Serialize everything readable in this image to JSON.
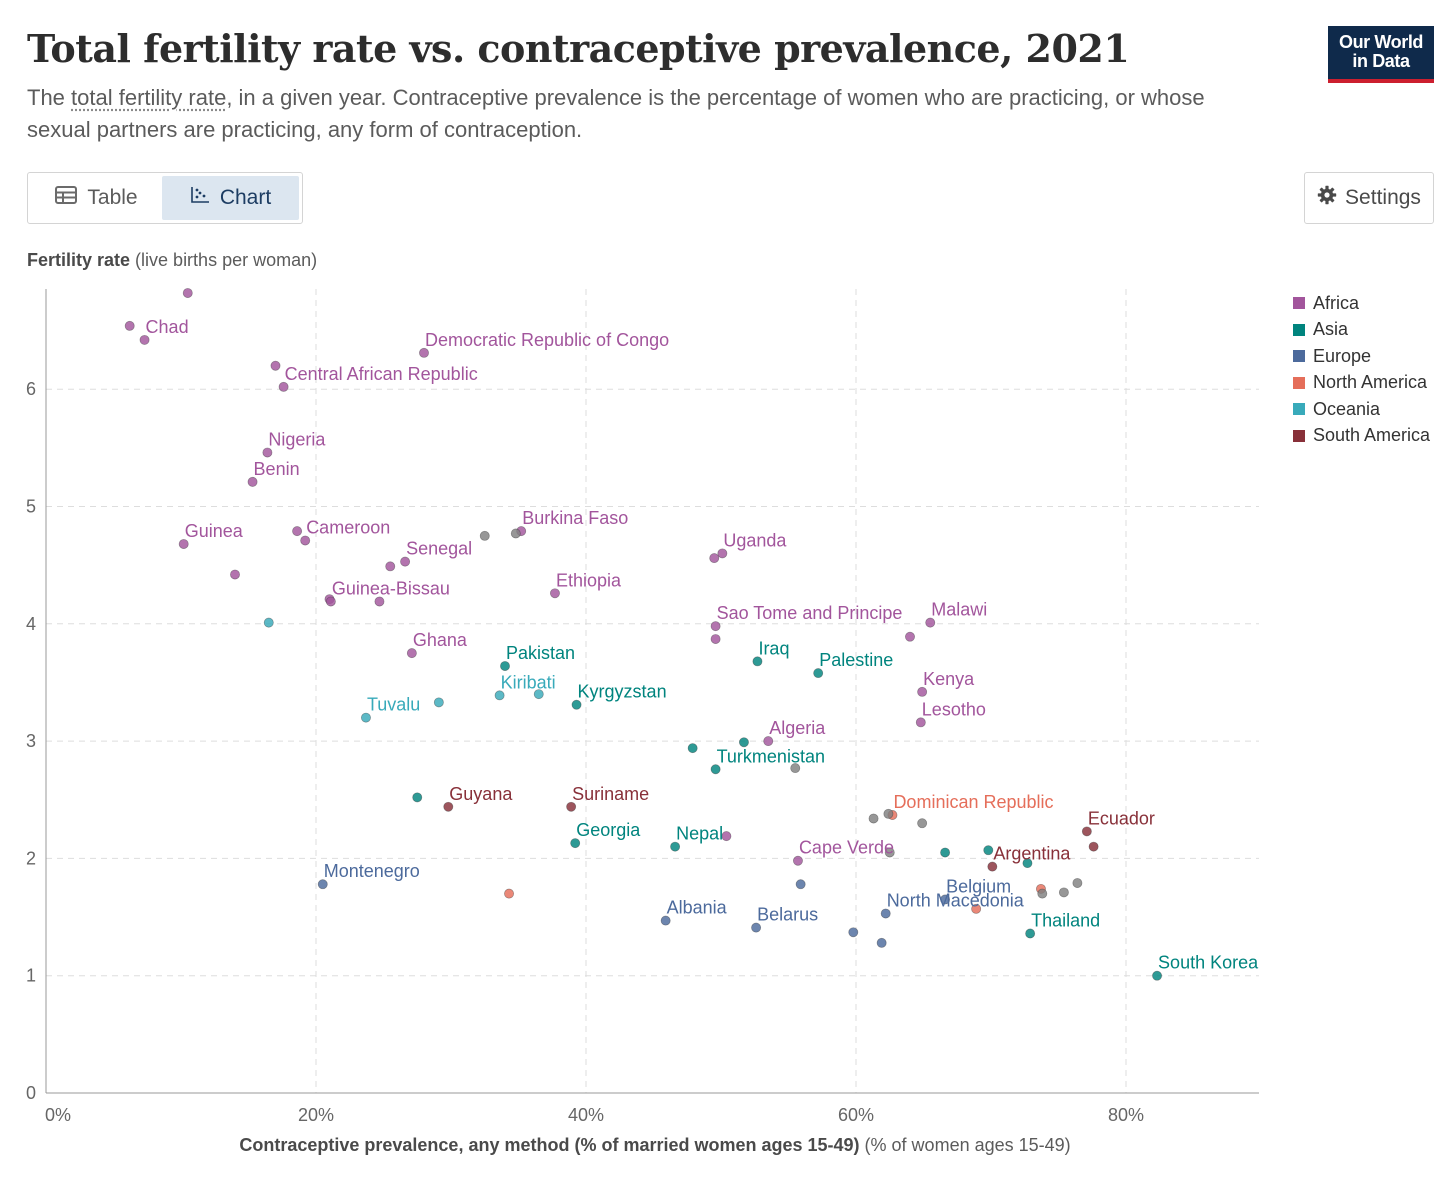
{
  "header": {
    "title": "Total fertility rate vs. contraceptive prevalence, 2021",
    "subtitle_pre": "The ",
    "subtitle_link": "total fertility rate",
    "subtitle_post": ", in a given year. Contraceptive prevalence is the percentage of women who are practicing, or whose sexual partners are practicing, any form of contraception.",
    "logo_line1": "Our World",
    "logo_line2": "in Data"
  },
  "controls": {
    "table_label": "Table",
    "chart_label": "Chart",
    "settings_label": "Settings",
    "active_tab": "Chart"
  },
  "axes": {
    "y_label_bold": "Fertility rate",
    "y_label_rest": " (live births per woman)",
    "x_label_bold": "Contraceptive prevalence, any method (% of married women ages 15-49)",
    "x_label_rest": " (% of women ages 15-49)"
  },
  "colors": {
    "Africa": "#a2559c",
    "Asia": "#00847e",
    "Europe": "#4c6a9c",
    "North America": "#e56e5a",
    "Oceania": "#38aaba",
    "South America": "#883039",
    "Other": "#808080"
  },
  "chart_data": {
    "type": "scatter",
    "xlim": [
      0,
      90
    ],
    "ylim": [
      0,
      6.8
    ],
    "x_ticks": [
      0,
      20,
      40,
      60,
      80
    ],
    "x_tick_labels": [
      "0%",
      "20%",
      "40%",
      "60%",
      "80%"
    ],
    "y_ticks": [
      0,
      1,
      2,
      3,
      4,
      5,
      6
    ],
    "y_tick_labels": [
      "0",
      "1",
      "2",
      "3",
      "4",
      "5",
      "6"
    ],
    "grid": true,
    "legend_position": "right",
    "legend": [
      "Africa",
      "Asia",
      "Europe",
      "North America",
      "Oceania",
      "South America"
    ],
    "points": [
      {
        "x": 10.5,
        "y": 6.82,
        "r": "Africa"
      },
      {
        "x": 6.2,
        "y": 6.54,
        "r": "Africa"
      },
      {
        "x": 7.3,
        "y": 6.42,
        "r": "Africa",
        "label": "Chad"
      },
      {
        "x": 28.0,
        "y": 6.31,
        "r": "Africa",
        "label": "Democratic Republic of Congo"
      },
      {
        "x": 17.0,
        "y": 6.2,
        "r": "Africa"
      },
      {
        "x": 17.6,
        "y": 6.02,
        "r": "Africa",
        "label": "Central African Republic"
      },
      {
        "x": 16.4,
        "y": 5.46,
        "r": "Africa",
        "label": "Nigeria"
      },
      {
        "x": 15.3,
        "y": 5.21,
        "r": "Africa",
        "label": "Benin"
      },
      {
        "x": 10.2,
        "y": 4.68,
        "r": "Africa",
        "label": "Guinea"
      },
      {
        "x": 18.6,
        "y": 4.79,
        "r": "Africa"
      },
      {
        "x": 19.2,
        "y": 4.71,
        "r": "Africa",
        "label": "Cameroon"
      },
      {
        "x": 35.2,
        "y": 4.79,
        "r": "Africa",
        "label": "Burkina Faso"
      },
      {
        "x": 34.8,
        "y": 4.77,
        "r": "Other"
      },
      {
        "x": 32.5,
        "y": 4.75,
        "r": "Other"
      },
      {
        "x": 26.6,
        "y": 4.53,
        "r": "Africa",
        "label": "Senegal"
      },
      {
        "x": 25.5,
        "y": 4.49,
        "r": "Africa"
      },
      {
        "x": 14.0,
        "y": 4.42,
        "r": "Africa"
      },
      {
        "x": 37.7,
        "y": 4.26,
        "r": "Africa",
        "label": "Ethiopia"
      },
      {
        "x": 21.0,
        "y": 4.21,
        "r": "Africa"
      },
      {
        "x": 21.1,
        "y": 4.19,
        "r": "Africa",
        "label": "Guinea-Bissau"
      },
      {
        "x": 24.7,
        "y": 4.19,
        "r": "Africa"
      },
      {
        "x": 16.5,
        "y": 4.01,
        "r": "Oceania"
      },
      {
        "x": 50.1,
        "y": 4.6,
        "r": "Africa",
        "label": "Uganda"
      },
      {
        "x": 49.5,
        "y": 4.56,
        "r": "Africa"
      },
      {
        "x": 49.6,
        "y": 3.98,
        "r": "Africa",
        "label": "Sao Tome and Principe"
      },
      {
        "x": 49.6,
        "y": 3.87,
        "r": "Africa"
      },
      {
        "x": 65.5,
        "y": 4.01,
        "r": "Africa",
        "label": "Malawi"
      },
      {
        "x": 64.0,
        "y": 3.89,
        "r": "Africa"
      },
      {
        "x": 27.1,
        "y": 3.75,
        "r": "Africa",
        "label": "Ghana"
      },
      {
        "x": 34.0,
        "y": 3.64,
        "r": "Asia",
        "label": "Pakistan"
      },
      {
        "x": 52.7,
        "y": 3.68,
        "r": "Asia",
        "label": "Iraq"
      },
      {
        "x": 57.2,
        "y": 3.58,
        "r": "Asia",
        "label": "Palestine"
      },
      {
        "x": 64.9,
        "y": 3.42,
        "r": "Africa",
        "label": "Kenya"
      },
      {
        "x": 33.6,
        "y": 3.39,
        "r": "Oceania",
        "label": "Kiribati"
      },
      {
        "x": 36.5,
        "y": 3.4,
        "r": "Oceania"
      },
      {
        "x": 39.3,
        "y": 3.31,
        "r": "Asia",
        "label": "Kyrgyzstan"
      },
      {
        "x": 29.1,
        "y": 3.33,
        "r": "Oceania"
      },
      {
        "x": 23.7,
        "y": 3.2,
        "r": "Oceania",
        "label": "Tuvalu"
      },
      {
        "x": 64.8,
        "y": 3.16,
        "r": "Africa",
        "label": "Lesotho"
      },
      {
        "x": 53.5,
        "y": 3.0,
        "r": "Africa",
        "label": "Algeria"
      },
      {
        "x": 51.7,
        "y": 2.99,
        "r": "Asia"
      },
      {
        "x": 47.9,
        "y": 2.94,
        "r": "Asia"
      },
      {
        "x": 49.6,
        "y": 2.76,
        "r": "Asia",
        "label": "Turkmenistan"
      },
      {
        "x": 55.5,
        "y": 2.77,
        "r": "Other"
      },
      {
        "x": 27.5,
        "y": 2.52,
        "r": "Asia"
      },
      {
        "x": 29.8,
        "y": 2.44,
        "r": "South America",
        "label": "Guyana"
      },
      {
        "x": 38.9,
        "y": 2.44,
        "r": "South America",
        "label": "Suriname"
      },
      {
        "x": 62.7,
        "y": 2.37,
        "r": "North America",
        "label": "Dominican Republic"
      },
      {
        "x": 62.4,
        "y": 2.38,
        "r": "Other"
      },
      {
        "x": 61.3,
        "y": 2.34,
        "r": "Other"
      },
      {
        "x": 64.9,
        "y": 2.3,
        "r": "Other"
      },
      {
        "x": 77.1,
        "y": 2.23,
        "r": "South America",
        "label": "Ecuador"
      },
      {
        "x": 77.6,
        "y": 2.1,
        "r": "South America"
      },
      {
        "x": 50.4,
        "y": 2.19,
        "r": "Africa"
      },
      {
        "x": 39.2,
        "y": 2.13,
        "r": "Asia",
        "label": "Georgia"
      },
      {
        "x": 46.6,
        "y": 2.1,
        "r": "Asia",
        "label": "Nepal"
      },
      {
        "x": 55.7,
        "y": 1.98,
        "r": "Africa",
        "label": "Cape Verde"
      },
      {
        "x": 62.5,
        "y": 2.05,
        "r": "Other"
      },
      {
        "x": 66.6,
        "y": 2.05,
        "r": "Asia"
      },
      {
        "x": 69.8,
        "y": 2.07,
        "r": "Asia"
      },
      {
        "x": 70.1,
        "y": 1.93,
        "r": "South America",
        "label": "Argentina"
      },
      {
        "x": 72.7,
        "y": 1.96,
        "r": "Asia"
      },
      {
        "x": 20.5,
        "y": 1.78,
        "r": "Europe",
        "label": "Montenegro"
      },
      {
        "x": 55.9,
        "y": 1.78,
        "r": "Europe"
      },
      {
        "x": 34.3,
        "y": 1.7,
        "r": "North America"
      },
      {
        "x": 66.6,
        "y": 1.65,
        "r": "Europe",
        "label": "Belgium"
      },
      {
        "x": 73.7,
        "y": 1.74,
        "r": "North America"
      },
      {
        "x": 73.8,
        "y": 1.7,
        "r": "Other"
      },
      {
        "x": 75.4,
        "y": 1.71,
        "r": "Other"
      },
      {
        "x": 76.4,
        "y": 1.79,
        "r": "Other"
      },
      {
        "x": 68.9,
        "y": 1.57,
        "r": "North America"
      },
      {
        "x": 45.9,
        "y": 1.47,
        "r": "Europe",
        "label": "Albania"
      },
      {
        "x": 52.6,
        "y": 1.41,
        "r": "Europe",
        "label": "Belarus"
      },
      {
        "x": 59.8,
        "y": 1.37,
        "r": "Europe"
      },
      {
        "x": 62.2,
        "y": 1.53,
        "r": "Europe",
        "label": "North Macedonia"
      },
      {
        "x": 61.9,
        "y": 1.28,
        "r": "Europe"
      },
      {
        "x": 72.9,
        "y": 1.36,
        "r": "Asia",
        "label": "Thailand"
      },
      {
        "x": 82.3,
        "y": 1.0,
        "r": "Asia",
        "label": "South Korea"
      }
    ]
  }
}
